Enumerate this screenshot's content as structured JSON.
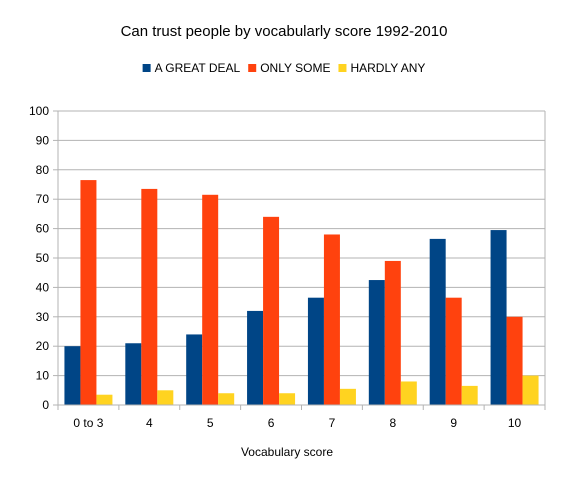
{
  "chart_data": {
    "type": "bar",
    "title": "Can trust people by vocabularly score 1992-2010",
    "xlabel": "Vocabulary score",
    "ylabel": "",
    "ylim": [
      0,
      100
    ],
    "yticks": [
      0,
      10,
      20,
      30,
      40,
      50,
      60,
      70,
      80,
      90,
      100
    ],
    "grid": true,
    "legend_position": "top",
    "categories": [
      "0 to 3",
      "4",
      "5",
      "6",
      "7",
      "8",
      "9",
      "10"
    ],
    "series": [
      {
        "name": "A GREAT DEAL",
        "color": "#004586",
        "values": [
          20,
          21,
          24,
          32,
          36.5,
          42.5,
          56.5,
          59.5
        ]
      },
      {
        "name": "ONLY SOME",
        "color": "#ff420e",
        "values": [
          76.5,
          73.5,
          71.5,
          64,
          58,
          49,
          36.5,
          30
        ]
      },
      {
        "name": "HARDLY ANY",
        "color": "#ffd320",
        "values": [
          3.5,
          5,
          4,
          4,
          5.5,
          8,
          6.5,
          10
        ]
      }
    ]
  }
}
